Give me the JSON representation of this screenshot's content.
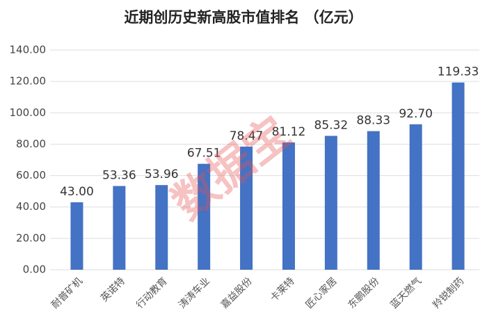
{
  "chart_data": {
    "type": "bar",
    "title": "近期创历史新高股市值排名 （亿元）",
    "categories": [
      "耐普矿机",
      "英诺特",
      "行动教育",
      "涛涛车业",
      "嘉益股份",
      "卡莱特",
      "匠心家居",
      "东鹏股份",
      "蓝天燃气",
      "羚锐制药"
    ],
    "values": [
      43.0,
      53.36,
      53.96,
      67.51,
      78.47,
      81.12,
      85.32,
      88.33,
      92.7,
      119.33
    ],
    "value_labels": [
      "43.00",
      "53.36",
      "53.96",
      "67.51",
      "78.47",
      "81.12",
      "85.32",
      "88.33",
      "92.70",
      "119.33"
    ],
    "color": "#4472c4",
    "ylim": [
      0,
      140
    ],
    "yticks": [
      {
        "value": 0,
        "label": "0.00"
      },
      {
        "value": 20,
        "label": "20.00"
      },
      {
        "value": 40,
        "label": "40.00"
      },
      {
        "value": 60,
        "label": "60.00"
      },
      {
        "value": 80,
        "label": "80.00"
      },
      {
        "value": 100,
        "label": "100.00"
      },
      {
        "value": 120,
        "label": "120.00"
      },
      {
        "value": 140,
        "label": "140.00"
      }
    ],
    "grid": true,
    "watermark": "数据宝"
  }
}
